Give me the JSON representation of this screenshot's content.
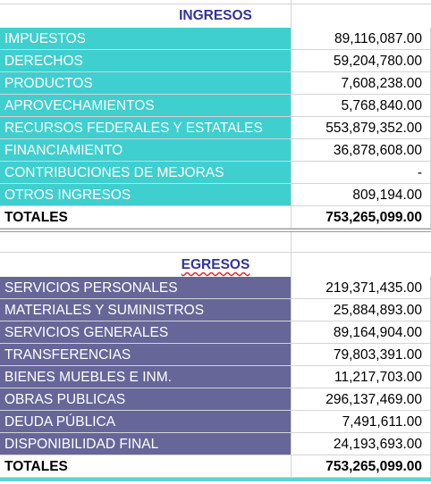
{
  "ingresos": {
    "title": "INGRESOS",
    "rows": [
      [
        "IMPUESTOS",
        "89,116,087.00"
      ],
      [
        "DERECHOS",
        "59,204,780.00"
      ],
      [
        "PRODUCTOS",
        "7,608,238.00"
      ],
      [
        "APROVECHAMIENTOS",
        "5,768,840.00"
      ],
      [
        "RECURSOS FEDERALES Y ESTATALES",
        "553,879,352.00"
      ],
      [
        "FINANCIAMIENTO",
        "36,878,608.00"
      ],
      [
        "CONTRIBUCIONES DE MEJORAS",
        "-"
      ],
      [
        "OTROS INGRESOS",
        "809,194.00"
      ]
    ],
    "total": [
      "TOTALES",
      "753,265,099.00"
    ]
  },
  "egresos": {
    "title": "EGRESOS",
    "rows": [
      [
        "SERVICIOS PERSONALES",
        "219,371,435.00"
      ],
      [
        "MATERIALES Y SUMINISTROS",
        "25,884,893.00"
      ],
      [
        "SERVICIOS GENERALES",
        "89,164,904.00"
      ],
      [
        "TRANSFERENCIAS",
        "79,803,391.00"
      ],
      [
        "BIENES MUEBLES E INM.",
        "11,217,703.00"
      ],
      [
        "OBRAS PUBLICAS",
        "296,137,469.00"
      ],
      [
        "DEUDA PÚBLICA",
        "7,491,611.00"
      ],
      [
        "DISPONIBILIDAD FINAL",
        "24,193,693.00"
      ]
    ],
    "total": [
      "TOTALES",
      "753,265,099.00"
    ]
  }
}
